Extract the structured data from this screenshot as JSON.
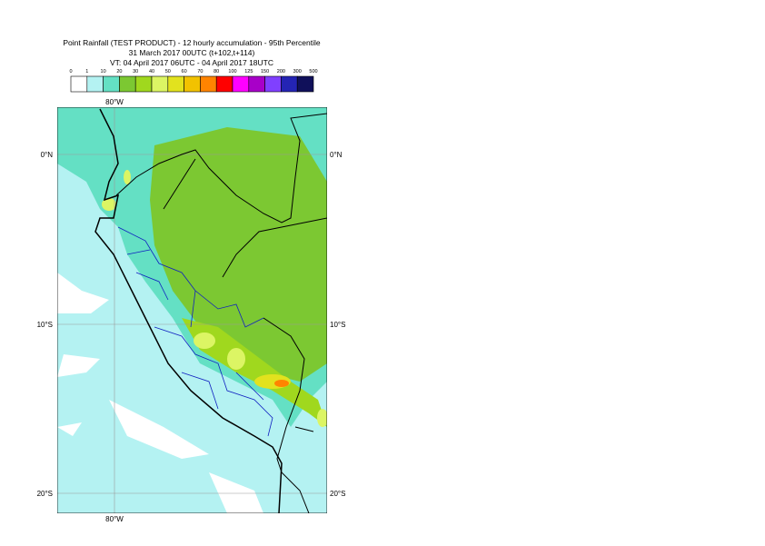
{
  "header": {
    "lines": [
      "Point Rainfall (TEST PRODUCT) - 12 hourly accumulation - 95th Percentile",
      "31 March 2017 00UTC (t+102,t+114)",
      "VT: 04 April 2017 06UTC - 04 April 2017 18UTC"
    ]
  },
  "legend": {
    "ticks": [
      0,
      1,
      10,
      20,
      30,
      40,
      50,
      60,
      70,
      80,
      100,
      125,
      150,
      200,
      300,
      500
    ],
    "colors": [
      "#ffffff",
      "#b4f2f2",
      "#64e0c4",
      "#7cc832",
      "#a0d81e",
      "#dcf564",
      "#e2e21e",
      "#f2c200",
      "#ff8400",
      "#ff0000",
      "#ff00ff",
      "#a800c8",
      "#8040ff",
      "#2424b4",
      "#10105a"
    ]
  },
  "map": {
    "lon_label": "80°W",
    "lat_labels": [
      "0°N",
      "10°S",
      "20°S"
    ]
  }
}
